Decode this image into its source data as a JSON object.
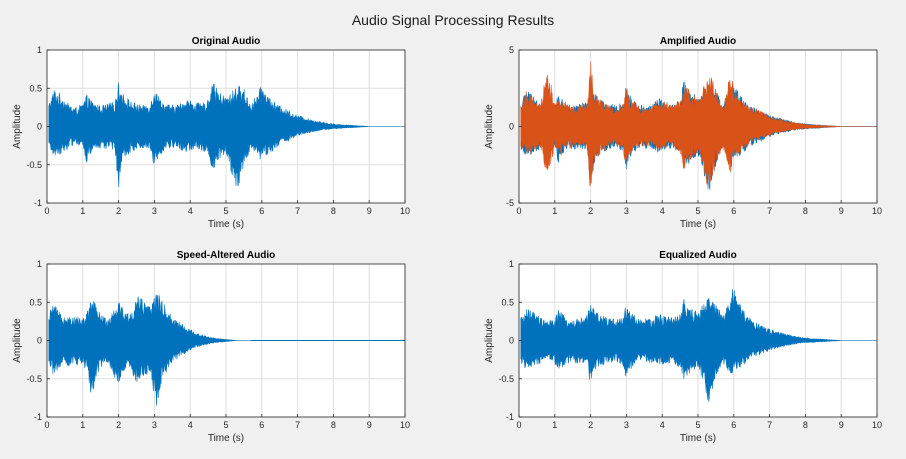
{
  "figure": {
    "title": "Audio Signal Processing Results"
  },
  "chart_data": [
    {
      "type": "area",
      "title": "Original Audio",
      "xlabel": "Time (s)",
      "ylabel": "Amplitude",
      "xlim": [
        0,
        10
      ],
      "ylim": [
        -1,
        1
      ],
      "xticks": [
        0,
        1,
        2,
        3,
        4,
        5,
        6,
        7,
        8,
        9,
        10
      ],
      "yticks": [
        -1,
        -0.5,
        0,
        0.5,
        1
      ],
      "grid": true,
      "series": [
        {
          "color": "#0072BD",
          "envelope": {
            "t": [
              0.05,
              0.2,
              0.4,
              0.6,
              0.8,
              1.0,
              1.1,
              1.3,
              1.5,
              1.7,
              1.9,
              2.0,
              2.1,
              2.3,
              2.5,
              2.7,
              2.9,
              3.0,
              3.1,
              3.3,
              3.5,
              3.7,
              3.9,
              4.1,
              4.3,
              4.5,
              4.6,
              4.8,
              5.0,
              5.1,
              5.3,
              5.5,
              5.7,
              5.9,
              6.0,
              6.2,
              6.4,
              6.6,
              6.8,
              7.0,
              7.2,
              7.5,
              7.8,
              8.1,
              8.4,
              8.7,
              9.0,
              9.5,
              10.0
            ],
            "upper": [
              0.3,
              0.5,
              0.42,
              0.3,
              0.25,
              0.3,
              0.42,
              0.32,
              0.27,
              0.3,
              0.33,
              0.6,
              0.45,
              0.35,
              0.3,
              0.28,
              0.32,
              0.55,
              0.42,
              0.3,
              0.28,
              0.3,
              0.37,
              0.33,
              0.3,
              0.35,
              0.62,
              0.45,
              0.4,
              0.42,
              0.55,
              0.5,
              0.3,
              0.45,
              0.55,
              0.4,
              0.3,
              0.25,
              0.2,
              0.15,
              0.12,
              0.08,
              0.05,
              0.03,
              0.02,
              0.01,
              0.0,
              0.0,
              0.0
            ],
            "lower": [
              -0.3,
              -0.4,
              -0.35,
              -0.3,
              -0.22,
              -0.3,
              -0.48,
              -0.3,
              -0.3,
              -0.3,
              -0.3,
              -0.82,
              -0.5,
              -0.35,
              -0.3,
              -0.28,
              -0.32,
              -0.58,
              -0.4,
              -0.3,
              -0.28,
              -0.3,
              -0.35,
              -0.3,
              -0.3,
              -0.38,
              -0.6,
              -0.45,
              -0.38,
              -0.52,
              -0.9,
              -0.5,
              -0.3,
              -0.45,
              -0.42,
              -0.38,
              -0.28,
              -0.22,
              -0.18,
              -0.14,
              -0.1,
              -0.07,
              -0.04,
              -0.03,
              -0.02,
              -0.01,
              0.0,
              0.0,
              0.0
            ]
          }
        }
      ]
    },
    {
      "type": "area",
      "title": "Amplified Audio",
      "xlabel": "Time (s)",
      "ylabel": "Amplitude",
      "xlim": [
        0,
        10
      ],
      "ylim": [
        -5,
        5
      ],
      "xticks": [
        0,
        1,
        2,
        3,
        4,
        5,
        6,
        7,
        8,
        9,
        10
      ],
      "yticks": [
        -5,
        0,
        5
      ],
      "grid": true,
      "series": [
        {
          "color": "#0072BD",
          "envelope": {
            "t": [
              0.05,
              0.2,
              0.4,
              0.6,
              0.8,
              1.0,
              1.1,
              1.3,
              1.5,
              1.7,
              1.9,
              2.0,
              2.1,
              2.3,
              2.5,
              2.7,
              2.9,
              3.0,
              3.1,
              3.3,
              3.5,
              3.7,
              3.9,
              4.1,
              4.3,
              4.5,
              4.6,
              4.8,
              5.0,
              5.1,
              5.3,
              5.5,
              5.7,
              5.9,
              6.0,
              6.2,
              6.4,
              6.6,
              6.8,
              7.0,
              7.2,
              7.5,
              7.8,
              8.1,
              8.4,
              8.7,
              9.0,
              9.5,
              10.0
            ],
            "upper": [
              1.5,
              2.5,
              2.1,
              1.5,
              1.25,
              1.5,
              2.1,
              1.6,
              1.35,
              1.5,
              1.65,
              3.0,
              2.25,
              1.75,
              1.5,
              1.4,
              1.6,
              2.75,
              2.1,
              1.5,
              1.4,
              1.5,
              1.85,
              1.65,
              1.5,
              1.75,
              3.1,
              2.25,
              2.0,
              2.1,
              2.75,
              2.5,
              1.5,
              2.25,
              2.75,
              2.0,
              1.5,
              1.25,
              1.0,
              0.75,
              0.6,
              0.4,
              0.25,
              0.15,
              0.1,
              0.05,
              0.0,
              0.0,
              0.0
            ],
            "lower": [
              -1.5,
              -2.0,
              -1.75,
              -1.5,
              -1.1,
              -1.5,
              -2.4,
              -1.5,
              -1.5,
              -1.5,
              -1.5,
              -4.1,
              -2.5,
              -1.75,
              -1.5,
              -1.4,
              -1.6,
              -2.9,
              -2.0,
              -1.5,
              -1.4,
              -1.5,
              -1.75,
              -1.5,
              -1.5,
              -1.9,
              -3.0,
              -2.25,
              -1.9,
              -2.6,
              -4.5,
              -2.5,
              -1.5,
              -2.25,
              -2.1,
              -1.9,
              -1.4,
              -1.1,
              -0.9,
              -0.7,
              -0.5,
              -0.35,
              -0.2,
              -0.15,
              -0.1,
              -0.05,
              0.0,
              0.0,
              0.0
            ]
          }
        },
        {
          "color": "#D95319",
          "envelope": {
            "t": [
              0.05,
              0.2,
              0.4,
              0.6,
              0.8,
              1.0,
              1.1,
              1.3,
              1.5,
              1.7,
              1.9,
              2.0,
              2.1,
              2.3,
              2.5,
              2.7,
              2.9,
              3.0,
              3.1,
              3.3,
              3.5,
              3.7,
              3.9,
              4.1,
              4.3,
              4.5,
              4.6,
              4.8,
              5.0,
              5.1,
              5.3,
              5.5,
              5.7,
              5.9,
              6.0,
              6.2,
              6.4,
              6.6,
              6.8,
              7.0,
              7.2,
              7.5,
              7.8,
              8.1,
              8.4,
              8.7,
              9.0,
              9.5,
              10.0
            ],
            "upper": [
              1.4,
              2.4,
              2.0,
              1.4,
              4.1,
              1.4,
              2.0,
              1.5,
              1.3,
              1.4,
              1.6,
              4.4,
              2.2,
              1.7,
              1.4,
              1.3,
              1.5,
              2.6,
              2.0,
              1.4,
              1.3,
              1.4,
              1.8,
              1.6,
              1.4,
              1.7,
              3.0,
              2.2,
              1.9,
              2.0,
              4.2,
              2.4,
              1.4,
              3.8,
              2.6,
              1.9,
              1.4,
              1.2,
              0.95,
              0.7,
              0.55,
              0.35,
              0.22,
              0.12,
              0.08,
              0.04,
              0.0,
              0.0,
              0.0
            ],
            "lower": [
              -1.4,
              -1.9,
              -1.7,
              -1.4,
              -3.8,
              -1.4,
              -2.3,
              -1.4,
              -1.4,
              -1.4,
              -1.4,
              -4.7,
              -2.4,
              -1.7,
              -1.4,
              -1.3,
              -1.5,
              -2.8,
              -1.9,
              -1.4,
              -1.3,
              -1.4,
              -1.7,
              -1.4,
              -1.4,
              -1.8,
              -2.9,
              -2.2,
              -1.8,
              -2.5,
              -4.3,
              -2.4,
              -1.4,
              -3.5,
              -2.0,
              -1.8,
              -1.3,
              -1.0,
              -0.85,
              -0.65,
              -0.45,
              -0.3,
              -0.18,
              -0.12,
              -0.08,
              -0.04,
              0.0,
              0.0,
              0.0
            ]
          }
        }
      ]
    },
    {
      "type": "area",
      "title": "Speed-Altered Audio",
      "xlabel": "Time (s)",
      "ylabel": "Amplitude",
      "xlim": [
        0,
        10
      ],
      "ylim": [
        -1,
        1
      ],
      "xticks": [
        0,
        1,
        2,
        3,
        4,
        5,
        6,
        7,
        8,
        9,
        10
      ],
      "yticks": [
        -1,
        -0.5,
        0,
        0.5,
        1
      ],
      "grid": true,
      "series": [
        {
          "color": "#0072BD",
          "envelope": {
            "t": [
              0.05,
              0.15,
              0.3,
              0.45,
              0.55,
              0.7,
              0.85,
              1.0,
              1.15,
              1.25,
              1.4,
              1.55,
              1.7,
              1.85,
              2.0,
              2.15,
              2.3,
              2.4,
              2.55,
              2.7,
              2.85,
              3.05,
              3.2,
              3.35,
              3.5,
              3.7,
              3.9,
              4.1,
              4.3,
              4.5,
              4.7,
              4.9,
              5.1,
              5.3,
              5.5,
              5.7
            ],
            "upper": [
              0.3,
              0.52,
              0.4,
              0.32,
              0.38,
              0.3,
              0.32,
              0.3,
              0.4,
              0.62,
              0.42,
              0.33,
              0.3,
              0.42,
              0.55,
              0.4,
              0.35,
              0.38,
              0.68,
              0.52,
              0.45,
              0.65,
              0.55,
              0.42,
              0.32,
              0.25,
              0.18,
              0.12,
              0.08,
              0.05,
              0.03,
              0.02,
              0.01,
              0.0,
              0.0,
              0.0
            ],
            "lower": [
              -0.3,
              -0.45,
              -0.38,
              -0.3,
              -0.4,
              -0.3,
              -0.32,
              -0.3,
              -0.5,
              -0.82,
              -0.45,
              -0.33,
              -0.3,
              -0.45,
              -0.58,
              -0.4,
              -0.35,
              -0.45,
              -0.6,
              -0.5,
              -0.42,
              -0.9,
              -0.55,
              -0.4,
              -0.3,
              -0.22,
              -0.16,
              -0.1,
              -0.07,
              -0.05,
              -0.03,
              -0.02,
              -0.01,
              0.0,
              0.0,
              0.0
            ]
          }
        }
      ]
    },
    {
      "type": "area",
      "title": "Equalized Audio",
      "xlabel": "Time (s)",
      "ylabel": "Amplitude",
      "xlim": [
        0,
        10
      ],
      "ylim": [
        -1,
        1
      ],
      "xticks": [
        0,
        1,
        2,
        3,
        4,
        5,
        6,
        7,
        8,
        9,
        10
      ],
      "yticks": [
        -1,
        -0.5,
        0,
        0.5,
        1
      ],
      "grid": true,
      "series": [
        {
          "color": "#0072BD",
          "envelope": {
            "t": [
              0.05,
              0.2,
              0.4,
              0.6,
              0.8,
              1.0,
              1.1,
              1.3,
              1.5,
              1.7,
              1.9,
              2.0,
              2.1,
              2.3,
              2.5,
              2.7,
              2.9,
              3.0,
              3.1,
              3.3,
              3.5,
              3.7,
              3.9,
              4.1,
              4.3,
              4.5,
              4.6,
              4.8,
              5.0,
              5.1,
              5.3,
              5.5,
              5.7,
              5.9,
              6.0,
              6.2,
              6.4,
              6.6,
              6.8,
              7.0,
              7.2,
              7.5,
              7.8,
              8.1,
              8.4,
              8.7,
              9.0,
              9.5,
              10.0
            ],
            "upper": [
              0.3,
              0.42,
              0.38,
              0.3,
              0.25,
              0.3,
              0.42,
              0.3,
              0.27,
              0.3,
              0.33,
              0.5,
              0.4,
              0.33,
              0.3,
              0.28,
              0.32,
              0.48,
              0.4,
              0.3,
              0.28,
              0.3,
              0.35,
              0.33,
              0.3,
              0.35,
              0.55,
              0.42,
              0.38,
              0.45,
              0.6,
              0.5,
              0.32,
              0.55,
              0.75,
              0.45,
              0.32,
              0.25,
              0.2,
              0.15,
              0.12,
              0.08,
              0.05,
              0.03,
              0.02,
              0.01,
              0.0,
              0.0,
              0.0
            ],
            "lower": [
              -0.3,
              -0.38,
              -0.35,
              -0.3,
              -0.22,
              -0.3,
              -0.45,
              -0.3,
              -0.3,
              -0.3,
              -0.3,
              -0.62,
              -0.42,
              -0.33,
              -0.3,
              -0.28,
              -0.32,
              -0.52,
              -0.4,
              -0.3,
              -0.28,
              -0.3,
              -0.35,
              -0.3,
              -0.3,
              -0.36,
              -0.55,
              -0.42,
              -0.36,
              -0.5,
              -0.85,
              -0.48,
              -0.3,
              -0.45,
              -0.42,
              -0.36,
              -0.27,
              -0.22,
              -0.17,
              -0.13,
              -0.1,
              -0.07,
              -0.04,
              -0.03,
              -0.02,
              -0.01,
              0.0,
              0.0,
              0.0
            ]
          }
        }
      ]
    }
  ]
}
